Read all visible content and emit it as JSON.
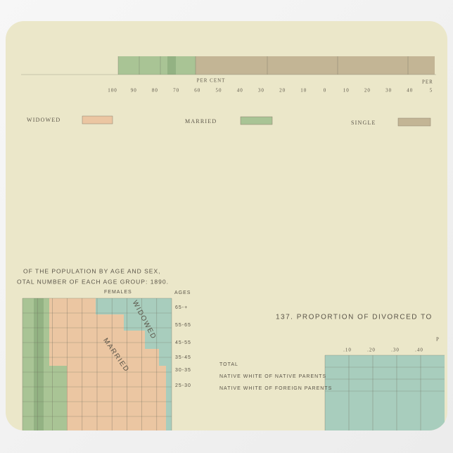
{
  "top_chart": {
    "axis_title": "PER CENT",
    "axis_title_right": "PER",
    "ticks": [
      "100",
      "90",
      "80",
      "70",
      "60",
      "50",
      "40",
      "30",
      "20",
      "10",
      "0",
      "10",
      "20",
      "30",
      "40",
      "5"
    ]
  },
  "legend": {
    "items": [
      "WIDOWED",
      "MARRIED",
      "SINGLE"
    ]
  },
  "age_chart": {
    "title_lines": [
      "OF THE POPULATION BY AGE AND SEX,",
      "OTAL NUMBER OF EACH AGE GROUP: 1890."
    ],
    "column_header": "FEMALES",
    "ages_header": "AGES",
    "ages": [
      "65-+",
      "55-65",
      "45-55",
      "35-45",
      "30-35",
      "25-30"
    ],
    "region_labels": [
      "WIDOWED",
      "MARRIED"
    ]
  },
  "divorce_chart": {
    "title": "137. PROPORTION OF DIVORCED TO",
    "axis_title": "P",
    "ticks": [
      ".10",
      ".20",
      ".30",
      ".40"
    ],
    "rows": [
      "TOTAL",
      "NATIVE WHITE OF NATIVE PARENTS",
      "NATIVE WHITE OF FOREIGN PARENTS"
    ]
  }
}
